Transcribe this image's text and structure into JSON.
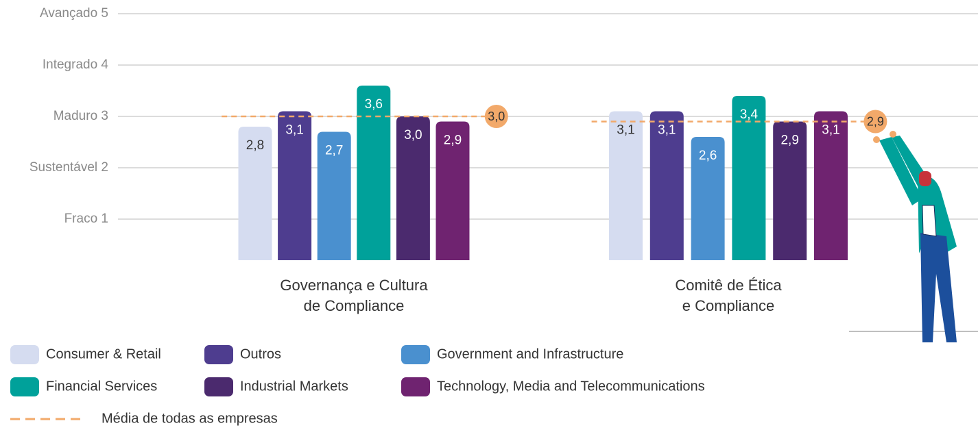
{
  "chart_data": {
    "type": "bar",
    "categories": [
      "Governança e Cultura\nde Compliance",
      "Comitê de Ética\ne Compliance"
    ],
    "series": [
      {
        "name": "Consumer & Retail",
        "color": "#d5dcf0",
        "values": [
          2.8,
          3.1
        ],
        "value_labels": [
          "2,8",
          "3,1"
        ]
      },
      {
        "name": "Outros",
        "color": "#4e3d8f",
        "values": [
          3.1,
          3.1
        ],
        "value_labels": [
          "3,1",
          "3,1"
        ]
      },
      {
        "name": "Government and Infrastructure",
        "color": "#4a90cf",
        "values": [
          2.7,
          2.6
        ],
        "value_labels": [
          "2,7",
          "2,6"
        ]
      },
      {
        "name": "Financial Services",
        "color": "#00a19a",
        "values": [
          3.6,
          3.4
        ],
        "value_labels": [
          "3,6",
          "3,4"
        ]
      },
      {
        "name": "Industrial Markets",
        "color": "#4b2a6e",
        "values": [
          3.0,
          2.9
        ],
        "value_labels": [
          "3,0",
          "2,9"
        ]
      },
      {
        "name": "Technology, Media and Telecommunications",
        "color": "#6f2370",
        "values": [
          2.9,
          3.1
        ],
        "value_labels": [
          "2,9",
          "3,1"
        ]
      }
    ],
    "average": {
      "name": "Média de todas as empresas",
      "color": "#f2a96a",
      "values": [
        3.0,
        2.9
      ],
      "value_labels": [
        "3,0",
        "2,9"
      ]
    },
    "ylim": [
      0.2,
      5
    ],
    "yticks": [
      {
        "value": 1,
        "label": "Fraco 1"
      },
      {
        "value": 2,
        "label": "Sustentável 2"
      },
      {
        "value": 3,
        "label": "Maduro 3"
      },
      {
        "value": 4,
        "label": "Integrado 4"
      },
      {
        "value": 5,
        "label": "Avançado 5"
      }
    ],
    "grid": true
  }
}
